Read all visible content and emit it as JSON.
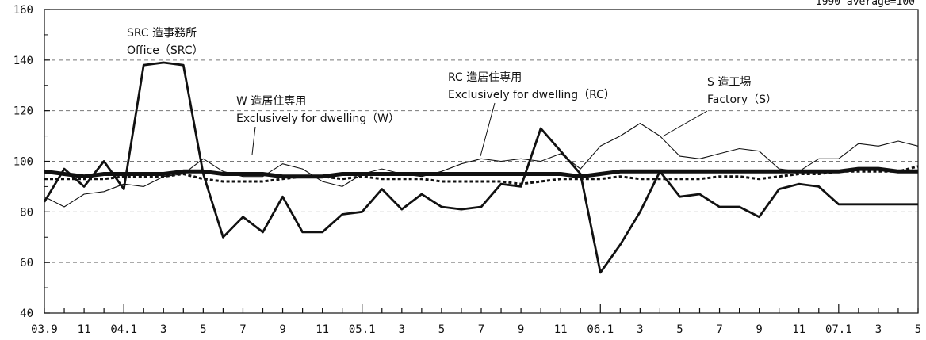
{
  "chart_data": {
    "type": "line",
    "corner_note": "1990 average=100",
    "ylim": [
      40,
      160
    ],
    "yticks": [
      40,
      60,
      80,
      100,
      120,
      140,
      160
    ],
    "y_grid_dashed": [
      60,
      80,
      100,
      120,
      140
    ],
    "x_tick_labels": [
      "03.9",
      "11",
      "04.1",
      "3",
      "5",
      "7",
      "9",
      "11",
      "05.1",
      "3",
      "5",
      "7",
      "9",
      "11",
      "06.1",
      "3",
      "5",
      "7",
      "9",
      "11",
      "07.1",
      "3",
      "5"
    ],
    "x_count": 45,
    "series": [
      {
        "key": "office",
        "values": [
          84,
          97,
          90,
          100,
          89,
          138,
          139,
          138,
          95,
          70,
          78,
          72,
          86,
          72,
          72,
          79,
          80,
          89,
          81,
          87,
          82,
          81,
          82,
          91,
          90,
          113,
          104,
          95,
          56,
          67,
          80,
          96,
          86,
          87,
          82,
          82,
          78,
          89,
          91,
          90,
          83,
          83,
          83,
          83,
          83
        ],
        "color": "#111111",
        "style": "thick-solid"
      },
      {
        "key": "wood",
        "values": [
          96,
          95,
          94,
          95,
          95,
          95,
          95,
          96,
          96,
          95,
          95,
          95,
          94,
          94,
          94,
          95,
          95,
          95,
          95,
          95,
          95,
          95,
          95,
          95,
          95,
          95,
          95,
          94,
          95,
          96,
          96,
          96,
          96,
          96,
          96,
          96,
          96,
          96,
          96,
          96,
          96,
          97,
          97,
          96,
          96
        ],
        "color": "#111111",
        "style": "heavy-solid"
      },
      {
        "key": "rc",
        "values": [
          93,
          93,
          93,
          93,
          94,
          94,
          94,
          95,
          93,
          92,
          92,
          92,
          93,
          94,
          94,
          93,
          94,
          93,
          93,
          93,
          92,
          92,
          92,
          92,
          91,
          92,
          93,
          93,
          93,
          94,
          93,
          93,
          93,
          93,
          94,
          94,
          93,
          94,
          95,
          95,
          96,
          96,
          96,
          96,
          98
        ],
        "color": "#111111",
        "style": "dotted"
      },
      {
        "key": "factory",
        "values": [
          86,
          82,
          87,
          88,
          91,
          90,
          94,
          95,
          101,
          96,
          94,
          94,
          99,
          97,
          92,
          90,
          95,
          97,
          95,
          94,
          96,
          99,
          101,
          100,
          101,
          100,
          103,
          97,
          106,
          110,
          115,
          110,
          102,
          101,
          103,
          105,
          104,
          97,
          96,
          101,
          101,
          107,
          106,
          108,
          106
        ],
        "color": "#111111",
        "style": "thin-solid"
      }
    ],
    "annotations": [
      {
        "key": "office",
        "lines": [
          "SRC 造事務所",
          "Office（SRC）"
        ]
      },
      {
        "key": "wood",
        "lines": [
          "W 造居住専用",
          "Exclusively for dwelling（W）"
        ]
      },
      {
        "key": "rc",
        "lines": [
          "RC 造居住専用",
          "Exclusively for dwelling（RC）"
        ]
      },
      {
        "key": "factory",
        "lines": [
          "S 造工場",
          "Factory（S）"
        ]
      }
    ]
  }
}
